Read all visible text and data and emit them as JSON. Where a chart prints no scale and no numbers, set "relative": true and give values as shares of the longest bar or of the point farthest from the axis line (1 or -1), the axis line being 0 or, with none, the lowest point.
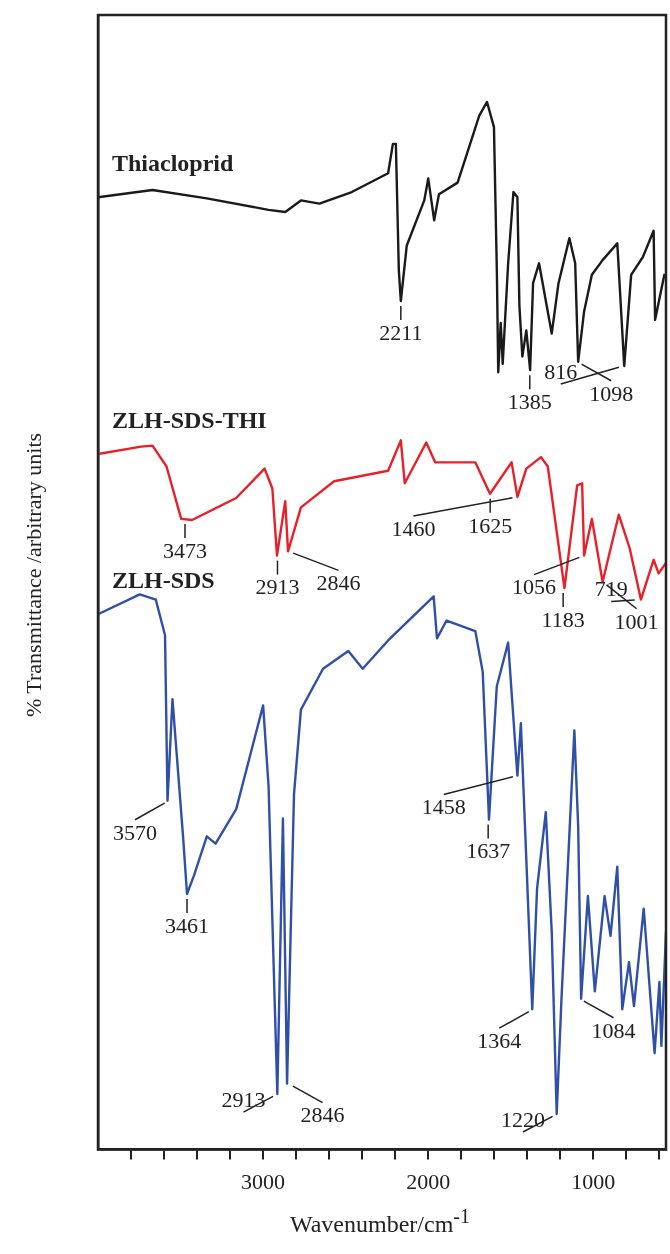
{
  "chart_data": {
    "type": "line",
    "relative": true,
    "xlabel": "Wavenumber/cm$^{-1}$",
    "ylabel": "% Transmittance /arbitrary units",
    "xlim": [
      4000,
      560
    ],
    "xticks": [
      {
        "value": 3800,
        "label": null
      },
      {
        "value": 3600,
        "label": null
      },
      {
        "value": 3400,
        "label": null
      },
      {
        "value": 3200,
        "label": null
      },
      3000,
      {
        "value": 2800,
        "label": null
      },
      {
        "value": 2600,
        "label": null
      },
      {
        "value": 2400,
        "label": null
      },
      {
        "value": 2200,
        "label": null
      },
      2000,
      {
        "value": 1800,
        "label": null
      },
      {
        "value": 1600,
        "label": null
      },
      {
        "value": 1400,
        "label": null
      },
      {
        "value": 1200,
        "label": null
      },
      1000,
      {
        "value": 800,
        "label": null
      },
      {
        "value": 600,
        "label": null
      }
    ],
    "tick_labels": "x",
    "legend": false,
    "grid": false,
    "marker": "none",
    "line_style": "solid",
    "series": [
      {
        "name": "Thiacloprid",
        "color": "#1a1a1a",
        "x": [
          4000,
          3670,
          3341,
          2967,
          2866,
          2771,
          2659,
          2463,
          2243,
          2214,
          2196,
          2178,
          2166,
          2130,
          2024,
          2000,
          1964,
          1935,
          1822,
          1691,
          1644,
          1602,
          1584,
          1576,
          1561,
          1549,
          1516,
          1484,
          1460,
          1448,
          1430,
          1406,
          1383,
          1365,
          1329,
          1252,
          1211,
          1145,
          1110,
          1092,
          1056,
          1009,
          944,
          855,
          813,
          771,
          700,
          635,
          626,
          570
        ],
        "values": [
          0.909,
          0.916,
          0.908,
          0.897,
          0.895,
          0.906,
          0.903,
          0.914,
          0.932,
          0.96,
          0.96,
          0.839,
          0.81,
          0.863,
          0.906,
          0.927,
          0.887,
          0.912,
          0.923,
          0.987,
          1.0,
          0.976,
          0.835,
          0.742,
          0.789,
          0.75,
          0.846,
          0.914,
          0.909,
          0.806,
          0.757,
          0.782,
          0.744,
          0.827,
          0.846,
          0.779,
          0.827,
          0.87,
          0.846,
          0.752,
          0.8,
          0.835,
          0.849,
          0.865,
          0.748,
          0.835,
          0.852,
          0.877,
          0.792,
          0.835
        ]
      },
      {
        "name": "ZLH-SDS-THI",
        "color": "#e8202a",
        "x": [
          4000,
          3739,
          3670,
          3585,
          3496,
          3430,
          3163,
          2991,
          2944,
          2916,
          2866,
          2849,
          2771,
          2570,
          2243,
          2166,
          2142,
          2012,
          1958,
          1715,
          1626,
          1495,
          1460,
          1406,
          1317,
          1276,
          1175,
          1098,
          1068,
          1056,
          1009,
          944,
          846,
          780,
          712,
          635,
          605,
          560
        ],
        "values": [
          0.664,
          0.671,
          0.672,
          0.652,
          0.602,
          0.601,
          0.622,
          0.65,
          0.631,
          0.567,
          0.619,
          0.571,
          0.613,
          0.638,
          0.648,
          0.677,
          0.636,
          0.675,
          0.656,
          0.656,
          0.626,
          0.656,
          0.623,
          0.65,
          0.661,
          0.652,
          0.536,
          0.634,
          0.636,
          0.567,
          0.602,
          0.542,
          0.606,
          0.574,
          0.525,
          0.563,
          0.55,
          0.56
        ]
      },
      {
        "name": "ZLH-SDS",
        "color": "#3050a8",
        "x": [
          4000,
          3747,
          3650,
          3594,
          3579,
          3549,
          3484,
          3461,
          3418,
          3341,
          3288,
          3163,
          3000,
          2967,
          2914,
          2880,
          2855,
          2813,
          2771,
          2637,
          2484,
          2397,
          2243,
          1967,
          1947,
          1889,
          1715,
          1670,
          1632,
          1585,
          1516,
          1460,
          1439,
          1406,
          1370,
          1341,
          1288,
          1252,
          1222,
          1193,
          1115,
          1092,
          1074,
          1033,
          991,
          932,
          896,
          855,
          825,
          784,
          754,
          695,
          629,
          600,
          588,
          560
        ],
        "values": [
          0.511,
          0.53,
          0.525,
          0.491,
          0.333,
          0.43,
          0.297,
          0.244,
          0.262,
          0.299,
          0.292,
          0.325,
          0.424,
          0.347,
          0.053,
          0.316,
          0.063,
          0.339,
          0.42,
          0.459,
          0.476,
          0.459,
          0.486,
          0.528,
          0.488,
          0.505,
          0.495,
          0.456,
          0.315,
          0.442,
          0.484,
          0.357,
          0.407,
          0.277,
          0.134,
          0.249,
          0.322,
          0.208,
          0.034,
          0.144,
          0.4,
          0.309,
          0.144,
          0.242,
          0.151,
          0.242,
          0.204,
          0.27,
          0.134,
          0.179,
          0.137,
          0.23,
          0.092,
          0.16,
          0.099,
          0.208
        ]
      }
    ],
    "annotations": [
      {
        "text": "2211",
        "x": 2166,
        "y": 0.81
      },
      {
        "text": "1385",
        "x": 1385,
        "y": 0.744
      },
      {
        "text": "1098",
        "x": 1098,
        "y": 0.752
      },
      {
        "text": "816",
        "x": 816,
        "y": 0.748
      },
      {
        "text": "3473",
        "x": 3473,
        "y": 0.602
      },
      {
        "text": "2913",
        "x": 2913,
        "y": 0.567
      },
      {
        "text": "2846",
        "x": 2846,
        "y": 0.571
      },
      {
        "text": "1625",
        "x": 1625,
        "y": 0.626
      },
      {
        "text": "1460",
        "x": 1460,
        "y": 0.623
      },
      {
        "text": "1183",
        "x": 1183,
        "y": 0.536
      },
      {
        "text": "1056",
        "x": 1056,
        "y": 0.567
      },
      {
        "text": "1001",
        "x": 944,
        "y": 0.542
      },
      {
        "text": "719",
        "x": 719,
        "y": 0.525
      },
      {
        "text": "3570",
        "x": 3570,
        "y": 0.333
      },
      {
        "text": "3461",
        "x": 3461,
        "y": 0.244
      },
      {
        "text": "2913",
        "x": 2913,
        "y": 0.053
      },
      {
        "text": "2846",
        "x": 2846,
        "y": 0.063
      },
      {
        "text": "1637",
        "x": 1637,
        "y": 0.315
      },
      {
        "text": "1458",
        "x": 1458,
        "y": 0.357
      },
      {
        "text": "1364",
        "x": 1364,
        "y": 0.134
      },
      {
        "text": "1220",
        "x": 1220,
        "y": 0.034
      },
      {
        "text": "1084",
        "x": 1084,
        "y": 0.144
      }
    ]
  }
}
